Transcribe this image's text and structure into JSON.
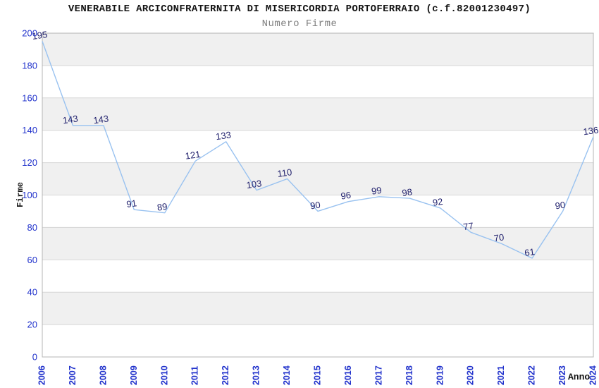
{
  "chart_data": {
    "type": "line",
    "title": "VENERABILE ARCICONFRATERNITA DI MISERICORDIA PORTOFERRAIO (c.f.82001230497)",
    "subtitle": "Numero Firme",
    "xlabel": "Anno",
    "ylabel": "Firme",
    "categories": [
      "2006",
      "2007",
      "2008",
      "2009",
      "2010",
      "2011",
      "2012",
      "2013",
      "2014",
      "2015",
      "2016",
      "2017",
      "2018",
      "2019",
      "2020",
      "2021",
      "2022",
      "2023",
      "2024"
    ],
    "values": [
      195,
      143,
      143,
      91,
      89,
      121,
      133,
      103,
      110,
      90,
      96,
      99,
      98,
      92,
      77,
      70,
      61,
      90,
      136
    ],
    "ylim": [
      0,
      200
    ],
    "ytick_step": 20,
    "grid": "horizontal-bands",
    "legend": "none",
    "style": {
      "line_color": "#99c2f0",
      "band_color": "#f0f0f0",
      "grid_color": "#d6d6d6",
      "border_color": "#b5b5b5",
      "tick_label_color": "#2233cc",
      "value_label_color": "#22226e",
      "title_color": "#141414",
      "subtitle_color": "#808080"
    }
  }
}
